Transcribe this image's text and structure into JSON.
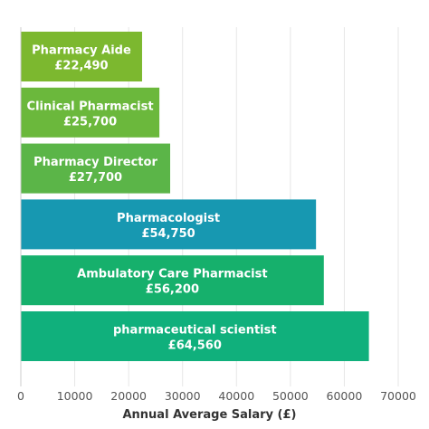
{
  "chart_data": {
    "type": "bar",
    "orientation": "horizontal",
    "title": "",
    "xlabel": "Annual Average Salary (£)",
    "ylabel": "",
    "xlim": [
      0,
      70000
    ],
    "xticks": [
      0,
      10000,
      20000,
      30000,
      40000,
      50000,
      60000,
      70000
    ],
    "xtick_labels": [
      "0",
      "10000",
      "20000",
      "30000",
      "40000",
      "50000",
      "60000",
      "70000"
    ],
    "grid": "vertical",
    "categories": [
      "Pharmacy Aide",
      "Clinical Pharmacist",
      "Pharmacy Director",
      "Pharmacologist",
      "Ambulatory Care Pharmacist",
      "pharmaceutical scientist"
    ],
    "values": [
      22490,
      25700,
      27700,
      54750,
      56200,
      64560
    ],
    "value_labels": [
      "£22,490",
      "£25,700",
      "£27,700",
      "£54,750",
      "£56,200",
      "£64,560"
    ],
    "colors": [
      "#7cb82f",
      "#6bb83c",
      "#5bb548",
      "#1798b1",
      "#16b06c",
      "#10b07c"
    ]
  }
}
